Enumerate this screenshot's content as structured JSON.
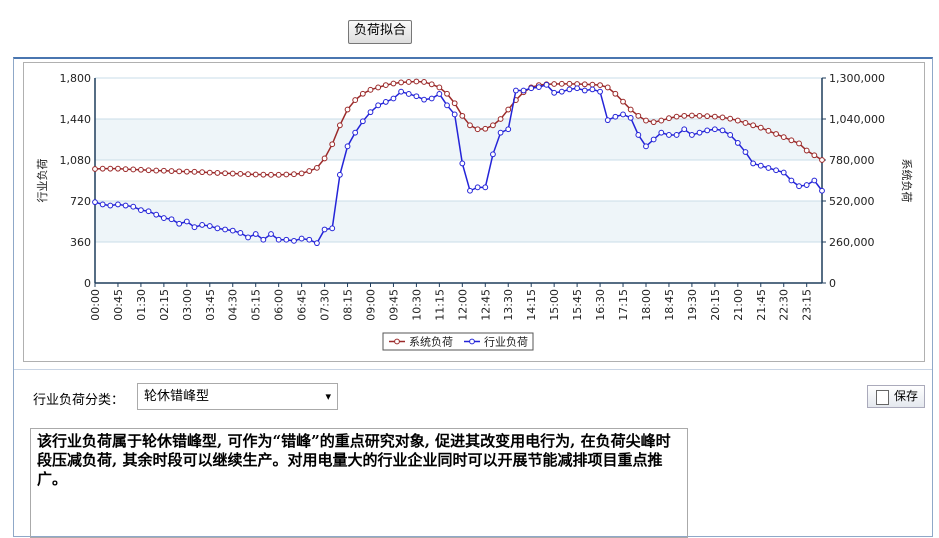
{
  "controls": {
    "fit_button": "负荷拟合",
    "category_label": "行业负荷分类：",
    "category_value": "轮休错峰型",
    "save_button": "保存",
    "description": "该行业负荷属于轮休错峰型, 可作为“错峰”的重点研究对象, 促进其改变用电行为, 在负荷尖峰时段压减负荷, 其余时段可以继续生产。对用电量大的行业企业同时可以开展节能减排项目重点推广。"
  },
  "chart_data": {
    "type": "line",
    "y_label": "行业负荷",
    "y2_label": "系统负荷",
    "grid": true,
    "legend": "bottom",
    "categories": [
      "00:00",
      null,
      null,
      "00:45",
      null,
      null,
      "01:30",
      null,
      null,
      "02:15",
      null,
      null,
      "03:00",
      null,
      null,
      "03:45",
      null,
      null,
      "04:30",
      null,
      null,
      "05:15",
      null,
      null,
      "06:00",
      null,
      null,
      "06:45",
      null,
      null,
      "07:30",
      null,
      null,
      "08:15",
      null,
      null,
      "09:00",
      null,
      null,
      "09:45",
      null,
      null,
      "10:30",
      null,
      null,
      "11:15",
      null,
      null,
      "12:00",
      null,
      null,
      "12:45",
      null,
      null,
      "13:30",
      null,
      null,
      "14:15",
      null,
      null,
      "15:00",
      null,
      null,
      "15:45",
      null,
      null,
      "16:30",
      null,
      null,
      "17:15",
      null,
      null,
      "18:00",
      null,
      null,
      "18:45",
      null,
      null,
      "19:30",
      null,
      null,
      "20:15",
      null,
      null,
      "21:00",
      null,
      null,
      "21:45",
      null,
      null,
      "22:30",
      null,
      null,
      "23:15",
      null,
      null
    ],
    "ylim": [
      0,
      1800
    ],
    "yticks": [
      0,
      360,
      720,
      {
        "value": 1080,
        "label": "1,080"
      },
      {
        "value": 1440,
        "label": "1,440"
      },
      {
        "value": 1800,
        "label": "1,800"
      }
    ],
    "y2lim": [
      0,
      1300000
    ],
    "y2ticks": [
      0,
      {
        "value": 260000,
        "label": "260,000"
      },
      {
        "value": 520000,
        "label": "520,000"
      },
      {
        "value": 780000,
        "label": "780,000"
      },
      {
        "value": 1040000,
        "label": "1,040,000"
      },
      {
        "value": 1300000,
        "label": "1,300,000"
      }
    ],
    "series": [
      {
        "name": "系统负荷",
        "color": "#9b2a2a",
        "axis": "y2",
        "values": [
          723000,
          725000,
          725000,
          725000,
          722000,
          720000,
          718000,
          715000,
          713000,
          712000,
          710000,
          708000,
          706000,
          705000,
          703000,
          700000,
          698000,
          696000,
          694000,
          692000,
          690000,
          688000,
          687000,
          686000,
          686000,
          688000,
          690000,
          695000,
          710000,
          730000,
          790000,
          880000,
          1000000,
          1100000,
          1160000,
          1200000,
          1225000,
          1240000,
          1255000,
          1265000,
          1272000,
          1275000,
          1278000,
          1275000,
          1260000,
          1240000,
          1200000,
          1140000,
          1060000,
          1000000,
          975000,
          978000,
          1000000,
          1040000,
          1100000,
          1160000,
          1210000,
          1240000,
          1255000,
          1260000,
          1262000,
          1263000,
          1263000,
          1262000,
          1260000,
          1258000,
          1255000,
          1240000,
          1200000,
          1150000,
          1100000,
          1060000,
          1030000,
          1020000,
          1030000,
          1045000,
          1055000,
          1060000,
          1062000,
          1060000,
          1058000,
          1055000,
          1050000,
          1042000,
          1030000,
          1015000,
          1000000,
          985000,
          965000,
          945000,
          925000,
          905000,
          885000,
          840000,
          810000,
          780000
        ]
      },
      {
        "name": "行业负荷",
        "color": "#2424d8",
        "values": [
          710,
          690,
          680,
          690,
          680,
          670,
          640,
          630,
          600,
          570,
          560,
          520,
          540,
          490,
          510,
          500,
          480,
          470,
          460,
          440,
          400,
          430,
          380,
          430,
          380,
          380,
          370,
          390,
          380,
          350,
          470,
          480,
          950,
          1200,
          1320,
          1420,
          1500,
          1560,
          1590,
          1620,
          1680,
          1660,
          1640,
          1610,
          1620,
          1660,
          1560,
          1480,
          1050,
          810,
          840,
          840,
          1130,
          1320,
          1350,
          1690,
          1690,
          1710,
          1720,
          1740,
          1670,
          1680,
          1700,
          1710,
          1690,
          1700,
          1680,
          1430,
          1460,
          1480,
          1450,
          1300,
          1200,
          1260,
          1320,
          1300,
          1300,
          1350,
          1300,
          1320,
          1340,
          1350,
          1340,
          1300,
          1230,
          1150,
          1050,
          1030,
          1010,
          990,
          970,
          900,
          850,
          860,
          900,
          810
        ]
      }
    ]
  }
}
